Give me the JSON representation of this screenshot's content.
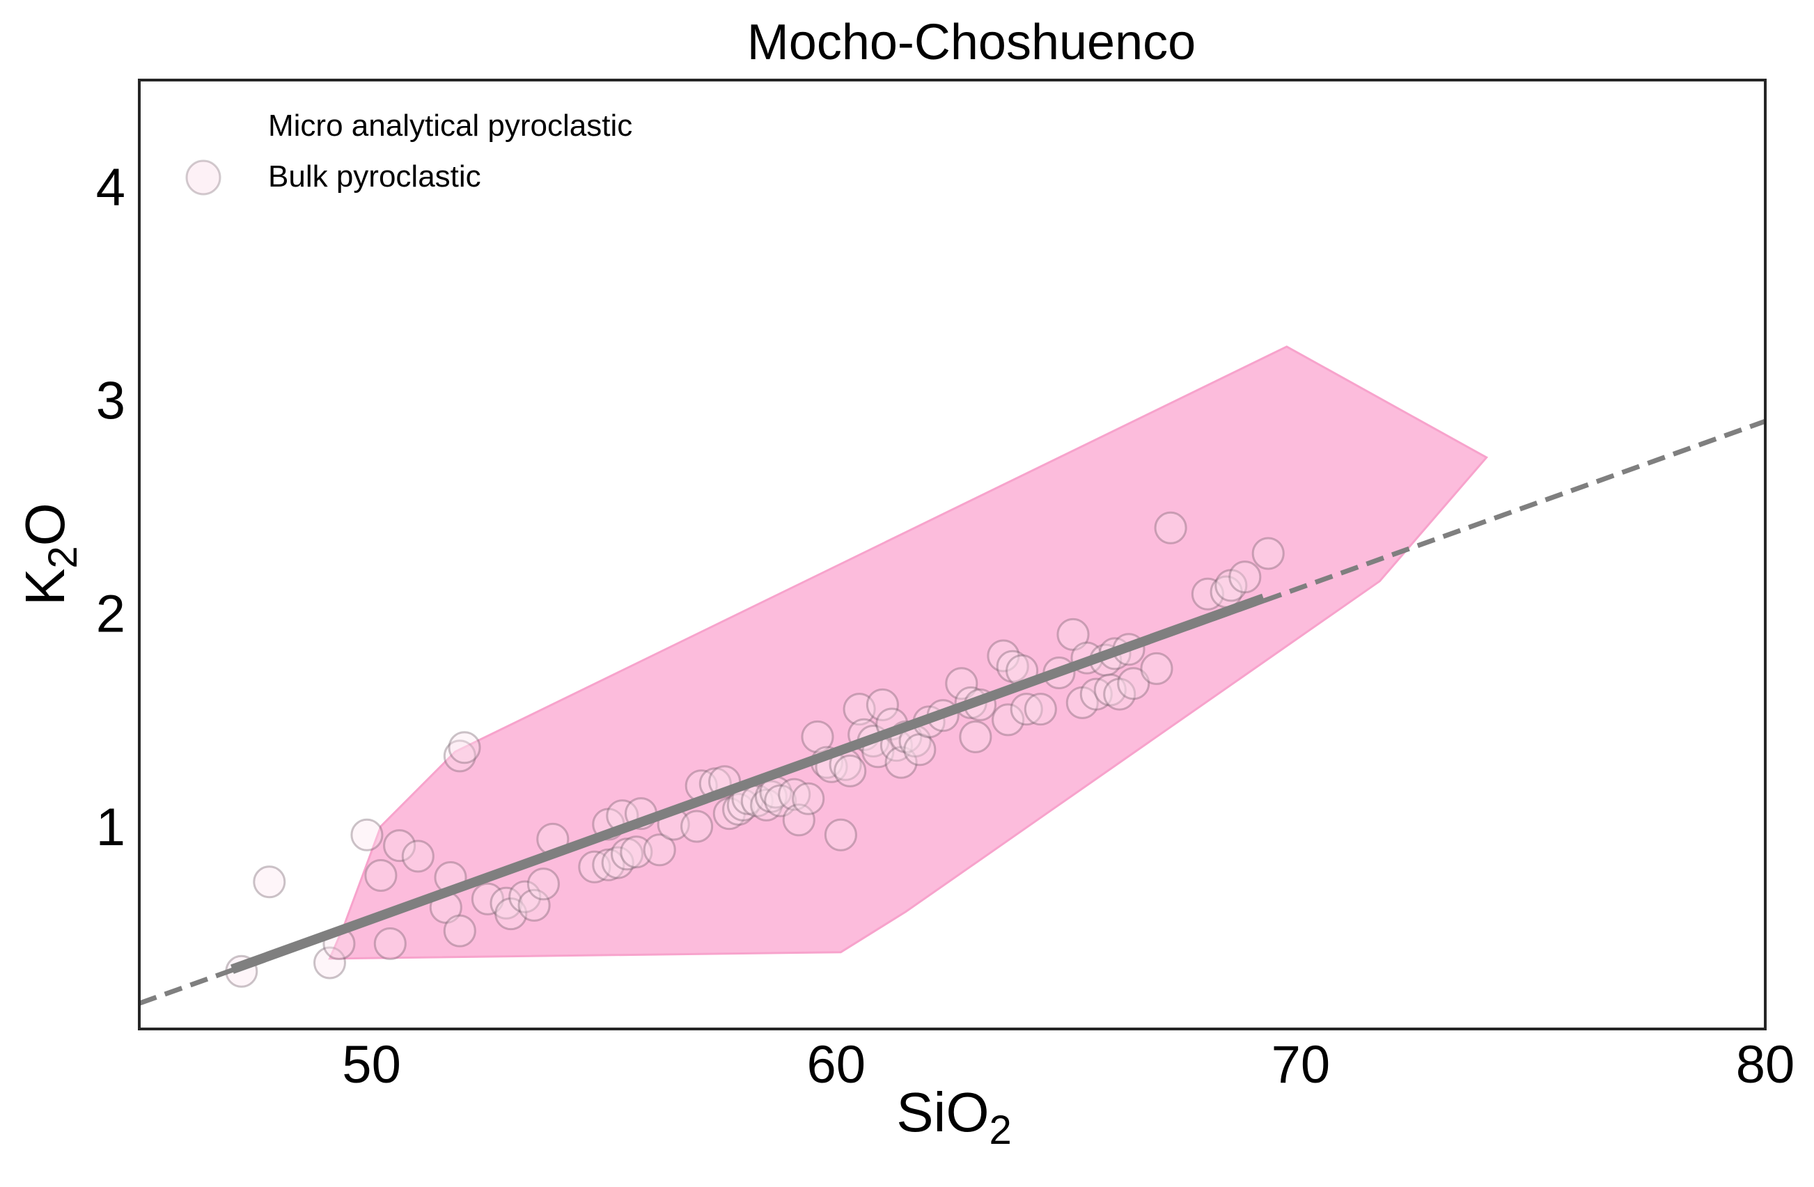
{
  "chart_data": {
    "type": "scatter",
    "title": "Mocho-Choshuenco",
    "xlabel": {
      "base": "SiO",
      "sub": "2"
    },
    "ylabel": {
      "base": "K",
      "sub": "2",
      "tail": "O"
    },
    "xlim": [
      45,
      80
    ],
    "ylim": [
      0.05,
      4.5
    ],
    "xticks": [
      50,
      60,
      70,
      80
    ],
    "yticks": [
      1,
      2,
      3,
      4
    ],
    "grid": false,
    "legend": {
      "placement": "top-left",
      "entries": [
        "Micro analytical pyroclastic",
        "Bulk pyroclastic"
      ]
    },
    "colors": {
      "region_fill": "#fcbcdc",
      "region_edge": "#f7a3cc",
      "marker_fill": "#fbe3ee",
      "marker_edge": "#6b5560",
      "trend": "#7f7f7f",
      "axes": "#262626"
    },
    "region": {
      "name": "Micro analytical pyroclastic",
      "polygon": [
        [
          49.1,
          0.38
        ],
        [
          49.4,
          0.53
        ],
        [
          50.2,
          1.0
        ],
        [
          51.8,
          1.35
        ],
        [
          69.7,
          3.25
        ],
        [
          74.0,
          2.73
        ],
        [
          71.7,
          2.15
        ],
        [
          61.5,
          0.6
        ],
        [
          60.1,
          0.41
        ]
      ]
    },
    "trend_line": {
      "solid": {
        "x": [
          47.0,
          69.2
        ],
        "y": [
          0.33,
          2.07
        ]
      },
      "dashed": {
        "x": [
          45.0,
          80.0
        ],
        "y": [
          0.17,
          2.9
        ]
      }
    },
    "series": [
      {
        "name": "Bulk pyroclastic",
        "points": [
          [
            47.2,
            0.32
          ],
          [
            47.8,
            0.74
          ],
          [
            49.1,
            0.36
          ],
          [
            49.3,
            0.45
          ],
          [
            49.9,
            0.96
          ],
          [
            50.2,
            0.77
          ],
          [
            50.4,
            0.45
          ],
          [
            50.6,
            0.91
          ],
          [
            51.0,
            0.86
          ],
          [
            51.6,
            0.62
          ],
          [
            51.7,
            0.76
          ],
          [
            51.9,
            0.51
          ],
          [
            51.9,
            1.33
          ],
          [
            52.0,
            1.37
          ],
          [
            52.5,
            0.66
          ],
          [
            52.9,
            0.64
          ],
          [
            53.0,
            0.59
          ],
          [
            53.3,
            0.67
          ],
          [
            53.5,
            0.63
          ],
          [
            53.7,
            0.73
          ],
          [
            53.9,
            0.94
          ],
          [
            54.8,
            0.81
          ],
          [
            55.1,
            0.82
          ],
          [
            55.1,
            1.01
          ],
          [
            55.3,
            0.83
          ],
          [
            55.4,
            1.05
          ],
          [
            55.5,
            0.87
          ],
          [
            55.7,
            0.88
          ],
          [
            55.8,
            1.06
          ],
          [
            56.2,
            0.89
          ],
          [
            56.5,
            1.01
          ],
          [
            57.0,
            1.0
          ],
          [
            57.1,
            1.19
          ],
          [
            57.4,
            1.2
          ],
          [
            57.6,
            1.21
          ],
          [
            57.7,
            1.06
          ],
          [
            57.9,
            1.08
          ],
          [
            58.0,
            1.1
          ],
          [
            58.1,
            1.13
          ],
          [
            58.3,
            1.12
          ],
          [
            58.5,
            1.1
          ],
          [
            58.6,
            1.14
          ],
          [
            58.7,
            1.16
          ],
          [
            58.8,
            1.12
          ],
          [
            59.1,
            1.15
          ],
          [
            59.2,
            1.03
          ],
          [
            59.4,
            1.13
          ],
          [
            59.6,
            1.42
          ],
          [
            59.8,
            1.3
          ],
          [
            59.9,
            1.28
          ],
          [
            60.1,
            0.96
          ],
          [
            60.2,
            1.29
          ],
          [
            60.3,
            1.26
          ],
          [
            60.5,
            1.55
          ],
          [
            60.6,
            1.43
          ],
          [
            60.8,
            1.4
          ],
          [
            60.9,
            1.35
          ],
          [
            61.0,
            1.57
          ],
          [
            61.2,
            1.48
          ],
          [
            61.3,
            1.38
          ],
          [
            61.4,
            1.3
          ],
          [
            61.5,
            1.42
          ],
          [
            61.7,
            1.4
          ],
          [
            61.8,
            1.36
          ],
          [
            62.0,
            1.49
          ],
          [
            62.3,
            1.52
          ],
          [
            62.7,
            1.67
          ],
          [
            62.9,
            1.58
          ],
          [
            63.0,
            1.42
          ],
          [
            63.1,
            1.57
          ],
          [
            63.6,
            1.8
          ],
          [
            63.7,
            1.5
          ],
          [
            63.8,
            1.75
          ],
          [
            64.0,
            1.73
          ],
          [
            64.1,
            1.55
          ],
          [
            64.4,
            1.55
          ],
          [
            64.8,
            1.72
          ],
          [
            65.1,
            1.9
          ],
          [
            65.3,
            1.58
          ],
          [
            65.4,
            1.79
          ],
          [
            65.6,
            1.62
          ],
          [
            65.8,
            1.78
          ],
          [
            65.9,
            1.64
          ],
          [
            66.0,
            1.81
          ],
          [
            66.1,
            1.62
          ],
          [
            66.3,
            1.83
          ],
          [
            66.4,
            1.67
          ],
          [
            66.9,
            1.74
          ],
          [
            67.2,
            2.4
          ],
          [
            68.0,
            2.09
          ],
          [
            68.4,
            2.1
          ],
          [
            68.5,
            2.13
          ],
          [
            68.8,
            2.17
          ],
          [
            69.3,
            2.28
          ]
        ]
      }
    ]
  }
}
